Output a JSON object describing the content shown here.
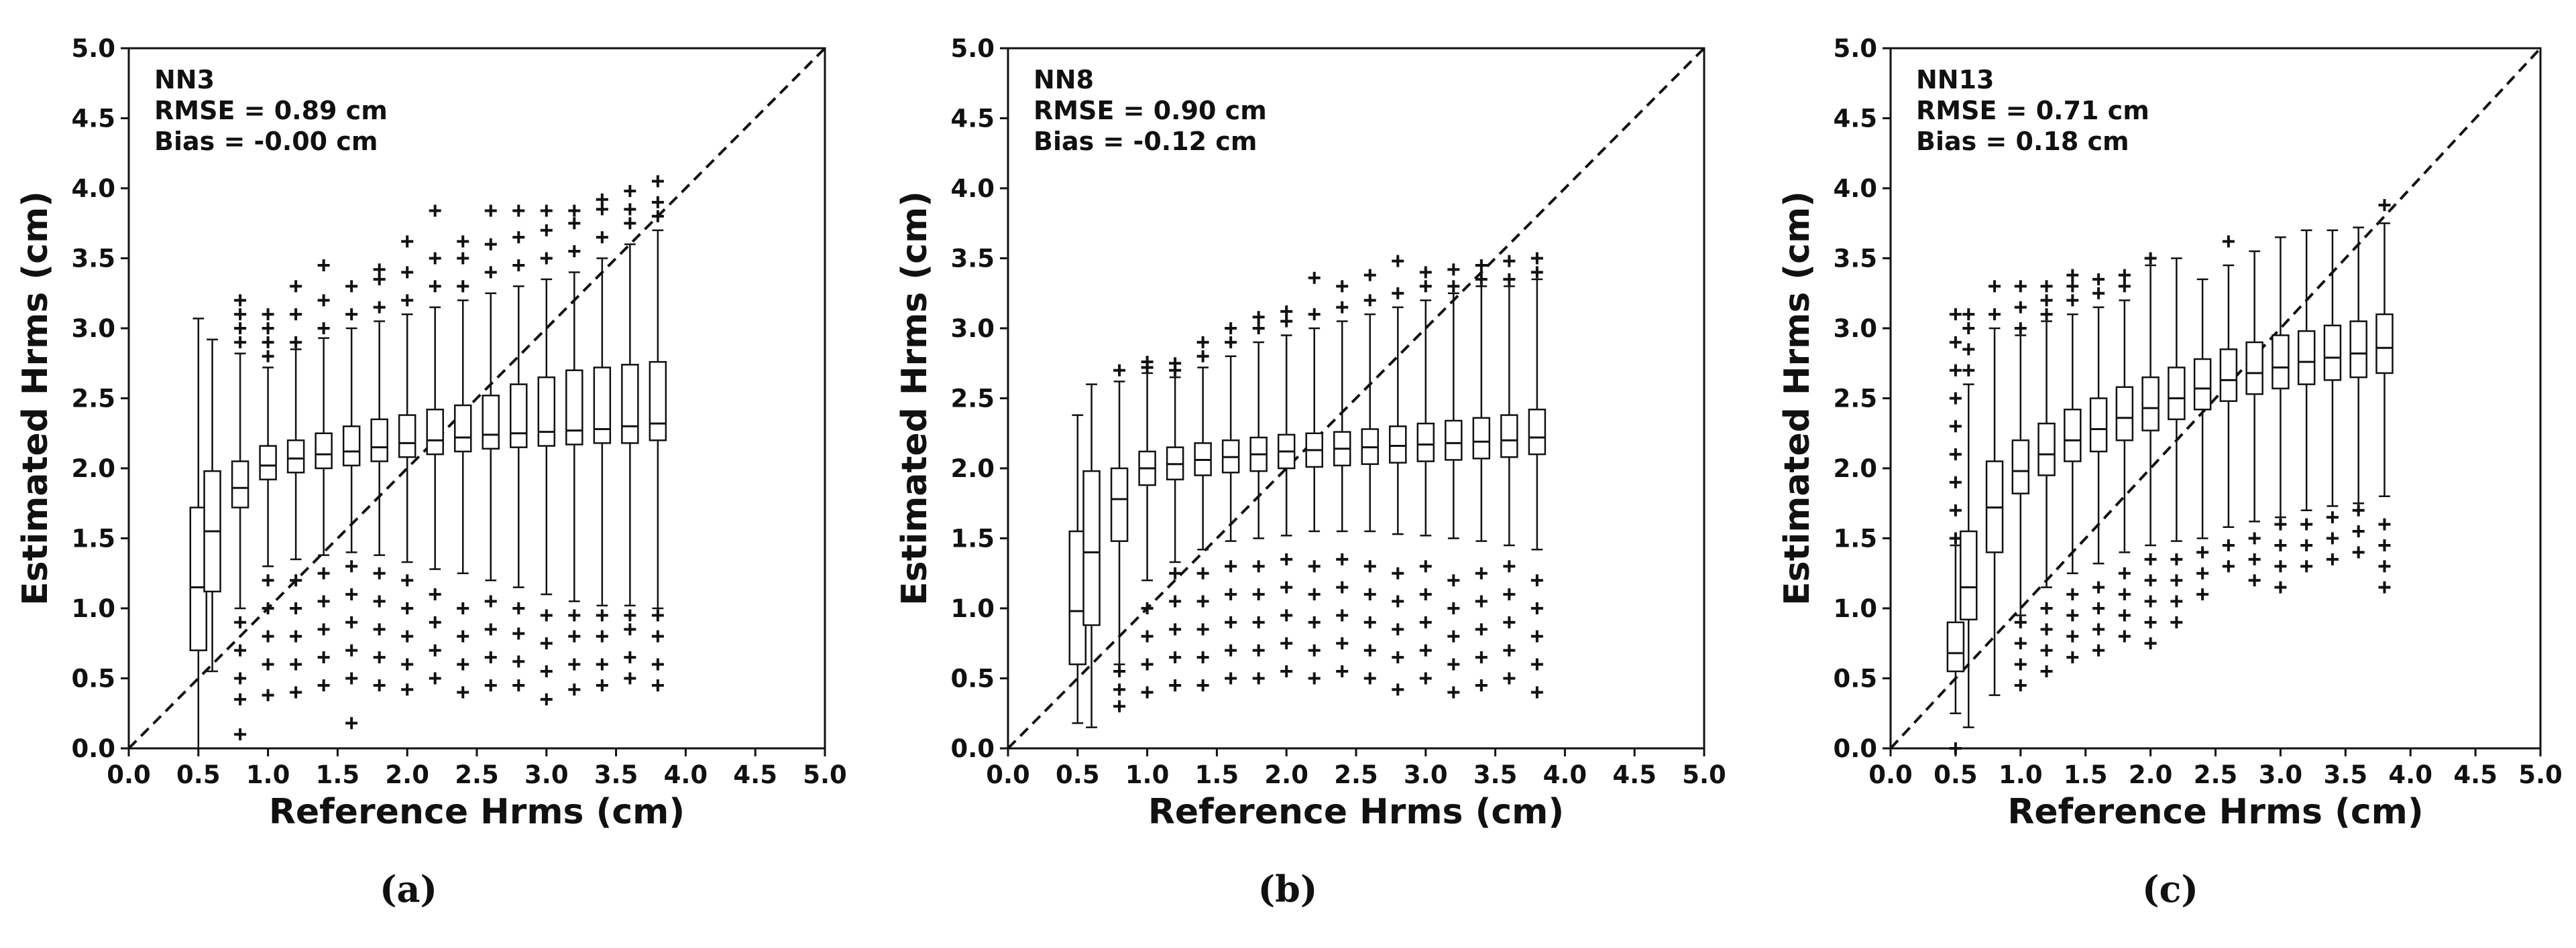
{
  "chart_data": [
    {
      "type": "box",
      "panel_label": "(a)",
      "annotations": [
        "NN3",
        "RMSE = 0.89 cm",
        "Bias = -0.00 cm"
      ],
      "xlabel": "Reference Hrms (cm)",
      "ylabel": "Estimated Hrms (cm)",
      "xlim": [
        0.0,
        5.0
      ],
      "ylim": [
        0.0,
        5.0
      ],
      "xticks": [
        "0.0",
        "0.5",
        "1.0",
        "1.5",
        "2.0",
        "2.5",
        "3.0",
        "3.5",
        "4.0",
        "4.5",
        "5.0"
      ],
      "yticks": [
        "0.0",
        "0.5",
        "1.0",
        "1.5",
        "2.0",
        "2.5",
        "3.0",
        "3.5",
        "4.0",
        "4.5",
        "5.0"
      ],
      "reference_line": "1:1 dashed",
      "boxes": [
        {
          "x": 0.5,
          "whislo": 0.0,
          "q1": 0.7,
          "med": 1.15,
          "q3": 1.72,
          "whishi": 3.07,
          "fliers": []
        },
        {
          "x": 0.6,
          "whislo": 0.55,
          "q1": 1.12,
          "med": 1.55,
          "q3": 1.98,
          "whishi": 2.92,
          "fliers": []
        },
        {
          "x": 0.8,
          "whislo": 1.0,
          "q1": 1.72,
          "med": 1.86,
          "q3": 2.05,
          "whishi": 2.82,
          "fliers": [
            0.1,
            0.35,
            0.5,
            0.7,
            0.9,
            2.9,
            3.0,
            3.1,
            3.2
          ]
        },
        {
          "x": 1.0,
          "whislo": 1.3,
          "q1": 1.92,
          "med": 2.02,
          "q3": 2.16,
          "whishi": 2.72,
          "fliers": [
            0.38,
            0.6,
            0.8,
            1.0,
            1.2,
            2.8,
            2.9,
            3.0,
            3.1
          ]
        },
        {
          "x": 1.2,
          "whislo": 1.35,
          "q1": 1.97,
          "med": 2.07,
          "q3": 2.2,
          "whishi": 2.85,
          "fliers": [
            0.4,
            0.6,
            0.8,
            1.0,
            1.2,
            2.9,
            3.1,
            3.3
          ]
        },
        {
          "x": 1.4,
          "whislo": 1.38,
          "q1": 2.0,
          "med": 2.1,
          "q3": 2.25,
          "whishi": 2.93,
          "fliers": [
            0.45,
            0.65,
            0.85,
            1.05,
            1.25,
            3.0,
            3.2,
            3.45
          ]
        },
        {
          "x": 1.6,
          "whislo": 1.4,
          "q1": 2.02,
          "med": 2.12,
          "q3": 2.3,
          "whishi": 3.0,
          "fliers": [
            0.18,
            0.5,
            0.7,
            0.9,
            1.1,
            1.3,
            3.1,
            3.3
          ]
        },
        {
          "x": 1.8,
          "whislo": 1.38,
          "q1": 2.05,
          "med": 2.15,
          "q3": 2.35,
          "whishi": 3.05,
          "fliers": [
            0.45,
            0.65,
            0.85,
            1.05,
            1.25,
            3.15,
            3.35,
            3.42
          ]
        },
        {
          "x": 2.0,
          "whislo": 1.33,
          "q1": 2.08,
          "med": 2.18,
          "q3": 2.38,
          "whishi": 3.1,
          "fliers": [
            0.42,
            0.6,
            0.8,
            1.0,
            1.2,
            3.2,
            3.4,
            3.62
          ]
        },
        {
          "x": 2.2,
          "whislo": 1.28,
          "q1": 2.1,
          "med": 2.2,
          "q3": 2.42,
          "whishi": 3.15,
          "fliers": [
            0.5,
            0.7,
            0.9,
            1.1,
            3.3,
            3.5,
            3.84
          ]
        },
        {
          "x": 2.4,
          "whislo": 1.25,
          "q1": 2.12,
          "med": 2.22,
          "q3": 2.45,
          "whishi": 3.2,
          "fliers": [
            0.4,
            0.6,
            0.8,
            1.0,
            3.3,
            3.5,
            3.62
          ]
        },
        {
          "x": 2.6,
          "whislo": 1.2,
          "q1": 2.14,
          "med": 2.24,
          "q3": 2.52,
          "whishi": 3.25,
          "fliers": [
            0.45,
            0.65,
            0.85,
            1.05,
            3.4,
            3.6,
            3.84
          ]
        },
        {
          "x": 2.8,
          "whislo": 1.15,
          "q1": 2.15,
          "med": 2.25,
          "q3": 2.6,
          "whishi": 3.3,
          "fliers": [
            0.45,
            0.62,
            0.82,
            1.0,
            3.45,
            3.65,
            3.84
          ]
        },
        {
          "x": 3.0,
          "whislo": 1.1,
          "q1": 2.16,
          "med": 2.26,
          "q3": 2.65,
          "whishi": 3.35,
          "fliers": [
            0.35,
            0.55,
            0.75,
            0.95,
            3.5,
            3.7,
            3.84
          ]
        },
        {
          "x": 3.2,
          "whislo": 1.05,
          "q1": 2.17,
          "med": 2.27,
          "q3": 2.7,
          "whishi": 3.4,
          "fliers": [
            0.42,
            0.6,
            0.8,
            0.95,
            3.55,
            3.75,
            3.84
          ]
        },
        {
          "x": 3.4,
          "whislo": 1.02,
          "q1": 2.18,
          "med": 2.28,
          "q3": 2.72,
          "whishi": 3.5,
          "fliers": [
            0.45,
            0.6,
            0.8,
            0.95,
            3.65,
            3.85,
            3.92
          ]
        },
        {
          "x": 3.6,
          "whislo": 1.02,
          "q1": 2.18,
          "med": 2.3,
          "q3": 2.74,
          "whishi": 3.6,
          "fliers": [
            0.5,
            0.65,
            0.85,
            0.95,
            3.75,
            3.85,
            3.98
          ]
        },
        {
          "x": 3.8,
          "whislo": 1.0,
          "q1": 2.2,
          "med": 2.32,
          "q3": 2.76,
          "whishi": 3.7,
          "fliers": [
            0.45,
            0.6,
            0.8,
            0.95,
            3.8,
            3.9,
            4.05
          ]
        }
      ]
    },
    {
      "type": "box",
      "panel_label": "(b)",
      "annotations": [
        "NN8",
        "RMSE = 0.90 cm",
        "Bias = -0.12 cm"
      ],
      "xlabel": "Reference Hrms (cm)",
      "ylabel": "Estimated Hrms (cm)",
      "xlim": [
        0.0,
        5.0
      ],
      "ylim": [
        0.0,
        5.0
      ],
      "xticks": [
        "0.0",
        "0.5",
        "1.0",
        "1.5",
        "2.0",
        "2.5",
        "3.0",
        "3.5",
        "4.0",
        "4.5",
        "5.0"
      ],
      "yticks": [
        "0.0",
        "0.5",
        "1.0",
        "1.5",
        "2.0",
        "2.5",
        "3.0",
        "3.5",
        "4.0",
        "4.5",
        "5.0"
      ],
      "reference_line": "1:1 dashed",
      "boxes": [
        {
          "x": 0.5,
          "whislo": 0.18,
          "q1": 0.6,
          "med": 0.98,
          "q3": 1.55,
          "whishi": 2.38,
          "fliers": []
        },
        {
          "x": 0.6,
          "whislo": 0.15,
          "q1": 0.88,
          "med": 1.4,
          "q3": 1.98,
          "whishi": 2.6,
          "fliers": []
        },
        {
          "x": 0.8,
          "whislo": 0.6,
          "q1": 1.48,
          "med": 1.78,
          "q3": 2.0,
          "whishi": 2.62,
          "fliers": [
            0.3,
            0.42,
            0.55,
            2.7
          ]
        },
        {
          "x": 1.0,
          "whislo": 1.2,
          "q1": 1.88,
          "med": 2.0,
          "q3": 2.12,
          "whishi": 2.68,
          "fliers": [
            0.4,
            0.6,
            0.8,
            1.0,
            2.72,
            2.76
          ]
        },
        {
          "x": 1.2,
          "whislo": 1.33,
          "q1": 1.92,
          "med": 2.03,
          "q3": 2.15,
          "whishi": 2.65,
          "fliers": [
            0.45,
            0.65,
            0.85,
            1.05,
            1.25,
            2.7,
            2.75
          ]
        },
        {
          "x": 1.4,
          "whislo": 1.42,
          "q1": 1.95,
          "med": 2.06,
          "q3": 2.18,
          "whishi": 2.72,
          "fliers": [
            0.45,
            0.65,
            0.85,
            1.05,
            1.25,
            2.8,
            2.9
          ]
        },
        {
          "x": 1.6,
          "whislo": 1.48,
          "q1": 1.97,
          "med": 2.08,
          "q3": 2.2,
          "whishi": 2.8,
          "fliers": [
            0.5,
            0.7,
            0.9,
            1.1,
            1.3,
            2.9,
            3.0
          ]
        },
        {
          "x": 1.8,
          "whislo": 1.5,
          "q1": 1.98,
          "med": 2.1,
          "q3": 2.22,
          "whishi": 2.9,
          "fliers": [
            0.5,
            0.7,
            0.9,
            1.1,
            1.3,
            3.0,
            3.08
          ]
        },
        {
          "x": 2.0,
          "whislo": 1.52,
          "q1": 2.0,
          "med": 2.12,
          "q3": 2.24,
          "whishi": 2.95,
          "fliers": [
            0.55,
            0.75,
            0.95,
            1.15,
            1.35,
            3.05,
            3.12
          ]
        },
        {
          "x": 2.2,
          "whislo": 1.55,
          "q1": 2.01,
          "med": 2.13,
          "q3": 2.25,
          "whishi": 3.0,
          "fliers": [
            0.5,
            0.7,
            0.9,
            1.1,
            1.3,
            3.1,
            3.36
          ]
        },
        {
          "x": 2.4,
          "whislo": 1.55,
          "q1": 2.02,
          "med": 2.14,
          "q3": 2.26,
          "whishi": 3.05,
          "fliers": [
            0.55,
            0.75,
            0.95,
            1.15,
            1.35,
            3.15,
            3.3
          ]
        },
        {
          "x": 2.6,
          "whislo": 1.55,
          "q1": 2.03,
          "med": 2.15,
          "q3": 2.28,
          "whishi": 3.1,
          "fliers": [
            0.5,
            0.7,
            0.9,
            1.1,
            1.3,
            3.2,
            3.38
          ]
        },
        {
          "x": 2.8,
          "whislo": 1.53,
          "q1": 2.04,
          "med": 2.16,
          "q3": 2.3,
          "whishi": 3.15,
          "fliers": [
            0.42,
            0.65,
            0.85,
            1.05,
            1.25,
            3.25,
            3.48
          ]
        },
        {
          "x": 3.0,
          "whislo": 1.52,
          "q1": 2.05,
          "med": 2.17,
          "q3": 2.32,
          "whishi": 3.2,
          "fliers": [
            0.5,
            0.7,
            0.9,
            1.1,
            1.3,
            3.3,
            3.4
          ]
        },
        {
          "x": 3.2,
          "whislo": 1.5,
          "q1": 2.06,
          "med": 2.18,
          "q3": 2.34,
          "whishi": 3.25,
          "fliers": [
            0.4,
            0.6,
            0.8,
            1.0,
            1.2,
            3.3,
            3.42
          ]
        },
        {
          "x": 3.4,
          "whislo": 1.48,
          "q1": 2.07,
          "med": 2.19,
          "q3": 2.36,
          "whishi": 3.3,
          "fliers": [
            0.45,
            0.65,
            0.85,
            1.05,
            1.25,
            3.35,
            3.45
          ]
        },
        {
          "x": 3.6,
          "whislo": 1.45,
          "q1": 2.08,
          "med": 2.2,
          "q3": 2.38,
          "whishi": 3.3,
          "fliers": [
            0.5,
            0.7,
            0.9,
            1.1,
            1.3,
            3.35,
            3.48
          ]
        },
        {
          "x": 3.8,
          "whislo": 1.42,
          "q1": 2.1,
          "med": 2.22,
          "q3": 2.42,
          "whishi": 3.35,
          "fliers": [
            0.4,
            0.6,
            0.8,
            1.0,
            1.2,
            3.4,
            3.5
          ]
        }
      ]
    },
    {
      "type": "box",
      "panel_label": "(c)",
      "annotations": [
        "NN13",
        "RMSE = 0.71 cm",
        "Bias = 0.18 cm"
      ],
      "xlabel": "Reference Hrms (cm)",
      "ylabel": "Estimated Hrms (cm)",
      "xlim": [
        0.0,
        5.0
      ],
      "ylim": [
        0.0,
        5.0
      ],
      "xticks": [
        "0.0",
        "0.5",
        "1.0",
        "1.5",
        "2.0",
        "2.5",
        "3.0",
        "3.5",
        "4.0",
        "4.5",
        "5.0"
      ],
      "yticks": [
        "0.0",
        "0.5",
        "1.0",
        "1.5",
        "2.0",
        "2.5",
        "3.0",
        "3.5",
        "4.0",
        "4.5",
        "5.0"
      ],
      "reference_line": "1:1 dashed",
      "boxes": [
        {
          "x": 0.5,
          "whislo": 0.25,
          "q1": 0.55,
          "med": 0.68,
          "q3": 0.9,
          "whishi": 1.45,
          "fliers": [
            0.0,
            1.5,
            1.7,
            1.9,
            2.1,
            2.3,
            2.5,
            2.7,
            2.9,
            3.1
          ]
        },
        {
          "x": 0.6,
          "whislo": 0.15,
          "q1": 0.92,
          "med": 1.15,
          "q3": 1.55,
          "whishi": 2.6,
          "fliers": [
            2.7,
            2.85,
            3.0,
            3.1
          ]
        },
        {
          "x": 0.8,
          "whislo": 0.38,
          "q1": 1.4,
          "med": 1.72,
          "q3": 2.05,
          "whishi": 3.0,
          "fliers": [
            3.1,
            3.3
          ]
        },
        {
          "x": 1.0,
          "whislo": 0.95,
          "q1": 1.82,
          "med": 1.98,
          "q3": 2.2,
          "whishi": 2.95,
          "fliers": [
            0.45,
            0.6,
            0.75,
            0.9,
            3.0,
            3.15,
            3.3
          ]
        },
        {
          "x": 1.2,
          "whislo": 1.15,
          "q1": 1.95,
          "med": 2.1,
          "q3": 2.32,
          "whishi": 3.05,
          "fliers": [
            0.55,
            0.7,
            0.85,
            1.0,
            3.1,
            3.2,
            3.3
          ]
        },
        {
          "x": 1.4,
          "whislo": 1.25,
          "q1": 2.05,
          "med": 2.2,
          "q3": 2.42,
          "whishi": 3.1,
          "fliers": [
            0.65,
            0.8,
            0.95,
            1.1,
            3.2,
            3.3,
            3.38
          ]
        },
        {
          "x": 1.6,
          "whislo": 1.32,
          "q1": 2.12,
          "med": 2.28,
          "q3": 2.5,
          "whishi": 3.15,
          "fliers": [
            0.7,
            0.85,
            1.0,
            1.15,
            3.25,
            3.35
          ]
        },
        {
          "x": 1.8,
          "whislo": 1.4,
          "q1": 2.2,
          "med": 2.36,
          "q3": 2.58,
          "whishi": 3.2,
          "fliers": [
            0.8,
            0.95,
            1.1,
            1.25,
            3.3,
            3.38
          ]
        },
        {
          "x": 2.0,
          "whislo": 1.45,
          "q1": 2.27,
          "med": 2.43,
          "q3": 2.65,
          "whishi": 3.45,
          "fliers": [
            0.75,
            0.9,
            1.05,
            1.2,
            1.35,
            3.5
          ]
        },
        {
          "x": 2.2,
          "whislo": 1.48,
          "q1": 2.35,
          "med": 2.5,
          "q3": 2.72,
          "whishi": 3.5,
          "fliers": [
            0.9,
            1.05,
            1.2,
            1.35
          ]
        },
        {
          "x": 2.4,
          "whislo": 1.5,
          "q1": 2.42,
          "med": 2.57,
          "q3": 2.78,
          "whishi": 3.35,
          "fliers": [
            1.1,
            1.25,
            1.4
          ]
        },
        {
          "x": 2.6,
          "whislo": 1.58,
          "q1": 2.48,
          "med": 2.63,
          "q3": 2.85,
          "whishi": 3.45,
          "fliers": [
            1.3,
            1.45,
            3.62
          ]
        },
        {
          "x": 2.8,
          "whislo": 1.62,
          "q1": 2.53,
          "med": 2.68,
          "q3": 2.9,
          "whishi": 3.55,
          "fliers": [
            1.2,
            1.35,
            1.5
          ]
        },
        {
          "x": 3.0,
          "whislo": 1.65,
          "q1": 2.57,
          "med": 2.72,
          "q3": 2.95,
          "whishi": 3.65,
          "fliers": [
            1.15,
            1.3,
            1.45,
            1.6
          ]
        },
        {
          "x": 3.2,
          "whislo": 1.7,
          "q1": 2.6,
          "med": 2.76,
          "q3": 2.98,
          "whishi": 3.7,
          "fliers": [
            1.3,
            1.45,
            1.6
          ]
        },
        {
          "x": 3.4,
          "whislo": 1.73,
          "q1": 2.63,
          "med": 2.79,
          "q3": 3.02,
          "whishi": 3.7,
          "fliers": [
            1.35,
            1.5,
            1.65
          ]
        },
        {
          "x": 3.6,
          "whislo": 1.75,
          "q1": 2.65,
          "med": 2.82,
          "q3": 3.05,
          "whishi": 3.72,
          "fliers": [
            1.4,
            1.55,
            1.7
          ]
        },
        {
          "x": 3.8,
          "whislo": 1.8,
          "q1": 2.68,
          "med": 2.86,
          "q3": 3.1,
          "whishi": 3.75,
          "fliers": [
            1.15,
            1.3,
            1.45,
            1.6,
            3.88
          ]
        }
      ]
    }
  ]
}
